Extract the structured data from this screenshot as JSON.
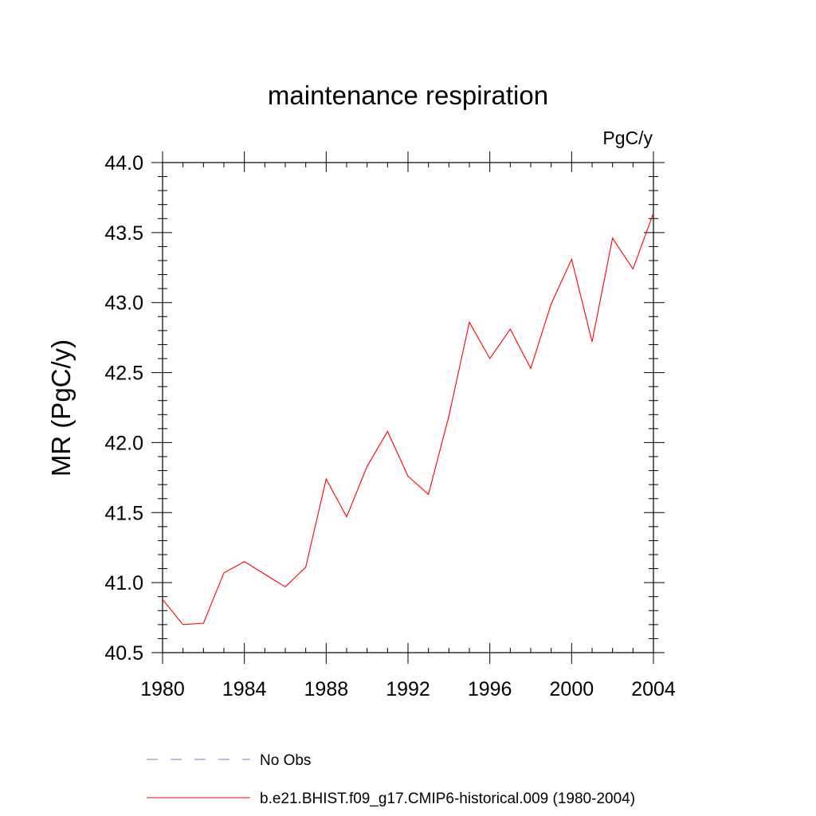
{
  "chart_data": {
    "type": "line",
    "title": "maintenance respiration",
    "units_label": "PgC/y",
    "xlabel": "",
    "ylabel": "MR  (PgC/y)",
    "xlim": [
      1980,
      2004
    ],
    "ylim": [
      40.5,
      44.0
    ],
    "x_ticks": [
      1980,
      1984,
      1988,
      1992,
      1996,
      2000,
      2004
    ],
    "x_tick_labels": [
      "1980",
      "1984",
      "1988",
      "1992",
      "1996",
      "2000",
      "2004"
    ],
    "y_ticks": [
      40.5,
      41.0,
      41.5,
      42.0,
      42.5,
      43.0,
      43.5,
      44.0
    ],
    "y_tick_labels": [
      "40.5",
      "41.0",
      "41.5",
      "42.0",
      "42.5",
      "43.0",
      "43.5",
      "44.0"
    ],
    "grid": false,
    "x": [
      1980,
      1981,
      1982,
      1983,
      1984,
      1985,
      1986,
      1987,
      1988,
      1989,
      1990,
      1991,
      1992,
      1993,
      1994,
      1995,
      1996,
      1997,
      1998,
      1999,
      2000,
      2001,
      2002,
      2003,
      2004
    ],
    "series": [
      {
        "name": "b.e21.BHIST.f09_g17.CMIP6-historical.009 (1980-2004)",
        "color": "#ff0000",
        "dash": "solid",
        "values": [
          40.88,
          40.7,
          40.71,
          41.07,
          41.15,
          41.06,
          40.97,
          41.11,
          41.74,
          41.47,
          41.83,
          42.08,
          41.76,
          41.63,
          42.19,
          42.86,
          42.6,
          42.81,
          42.53,
          42.99,
          43.31,
          42.72,
          43.46,
          43.24,
          43.64
        ]
      }
    ],
    "legend": {
      "placement": "bottom",
      "entries": [
        {
          "label": "No Obs",
          "color": "#7777cc",
          "dash": "dashed"
        },
        {
          "label": "b.e21.BHIST.f09_g17.CMIP6-historical.009 (1980-2004)",
          "color": "#ff0000",
          "dash": "solid"
        }
      ]
    }
  }
}
